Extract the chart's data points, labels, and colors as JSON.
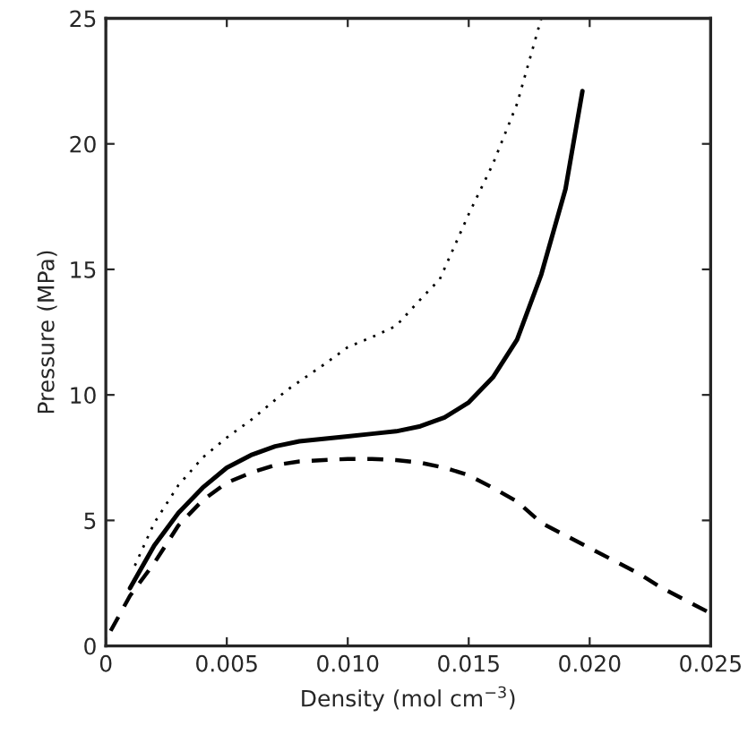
{
  "chart_data": {
    "type": "line",
    "xlabel": "Density (mol cm$^{−3}$)",
    "ylabel": "Pressure (MPa)",
    "xlim": [
      0,
      0.025
    ],
    "ylim": [
      0,
      25
    ],
    "xticks": [
      0,
      0.005,
      {
        "value": 0.01,
        "label": "0.010"
      },
      0.015,
      {
        "value": 0.02,
        "label": "0.020"
      },
      0.025
    ],
    "yticks": [
      0,
      5,
      10,
      15,
      20,
      25
    ],
    "grid": false,
    "legend": false,
    "series": [
      {
        "color": "#000000",
        "line_style": "dotted",
        "x": [
          0.0012,
          0.002,
          0.003,
          0.004,
          0.005,
          0.006,
          0.0075,
          0.009,
          0.01,
          0.011,
          0.012,
          0.013,
          0.0138,
          0.015,
          0.016,
          0.017,
          0.018
        ],
        "values": [
          3.2,
          4.9,
          6.4,
          7.5,
          8.3,
          9.0,
          10.2,
          11.2,
          11.9,
          12.3,
          12.75,
          13.8,
          14.6,
          17.2,
          19.2,
          21.6,
          25
        ]
      },
      {
        "color": "#000000",
        "line_style": "solid",
        "x": [
          0.001,
          0.002,
          0.003,
          0.004,
          0.005,
          0.006,
          0.007,
          0.008,
          0.009,
          0.01,
          0.011,
          0.012,
          0.013,
          0.014,
          0.015,
          0.016,
          0.017,
          0.018,
          0.019,
          0.0197
        ],
        "values": [
          2.3,
          4.0,
          5.3,
          6.3,
          7.1,
          7.6,
          7.95,
          8.15,
          8.25,
          8.35,
          8.45,
          8.55,
          8.75,
          9.1,
          9.7,
          10.7,
          12.2,
          14.8,
          18.2,
          22.1
        ]
      },
      {
        "color": "#000000",
        "line_style": "dashed",
        "x": [
          0.0002,
          0.001,
          0.002,
          0.003,
          0.004,
          0.005,
          0.006,
          0.007,
          0.008,
          0.009,
          0.01,
          0.011,
          0.012,
          0.013,
          0.014,
          0.015,
          0.016,
          0.017,
          0.018,
          0.019,
          0.02,
          0.021,
          0.022,
          0.023,
          0.024,
          0.025
        ],
        "values": [
          0.6,
          2.0,
          3.3,
          4.8,
          5.8,
          6.5,
          6.9,
          7.2,
          7.35,
          7.4,
          7.45,
          7.45,
          7.4,
          7.3,
          7.1,
          6.8,
          6.3,
          5.75,
          4.9,
          4.4,
          3.9,
          3.4,
          2.9,
          2.3,
          1.8,
          1.3
        ]
      }
    ]
  }
}
